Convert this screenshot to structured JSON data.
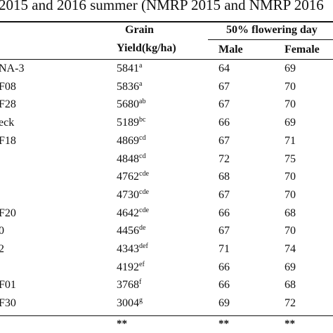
{
  "caption": "2015 and 2016 summer (NMRP 2015 and NMRP 2016",
  "headers": {
    "grain_line1": "Grain",
    "grain_line2": "Yield(kg/ha)",
    "flowering": "50% flowering day",
    "male": "Male",
    "female": "Female"
  },
  "rows": [
    {
      "name": "NA-3",
      "yield": "5841",
      "sup": "a",
      "male": "64",
      "female": "69"
    },
    {
      "name": "F08",
      "yield": "5836",
      "sup": "a",
      "male": "67",
      "female": "70"
    },
    {
      "name": "F28",
      "yield": "5680",
      "sup": "ab",
      "male": "67",
      "female": "70"
    },
    {
      "name": "eck",
      "yield": "5189",
      "sup": "bc",
      "male": "66",
      "female": "69"
    },
    {
      "name": "F18",
      "yield": "4869",
      "sup": "cd",
      "male": "67",
      "female": "71"
    },
    {
      "name": "",
      "yield": "4848",
      "sup": "cd",
      "male": "72",
      "female": "75"
    },
    {
      "name": "",
      "yield": "4762",
      "sup": "cde",
      "male": "68",
      "female": "70"
    },
    {
      "name": "",
      "yield": "4730",
      "sup": "cde",
      "male": "67",
      "female": "70"
    },
    {
      "name": "F20",
      "yield": "4642",
      "sup": "cde",
      "male": "66",
      "female": "68"
    },
    {
      "name": "0",
      "yield": "4456",
      "sup": "de",
      "male": "67",
      "female": "70"
    },
    {
      "name": "2",
      "yield": "4343",
      "sup": "def",
      "male": "71",
      "female": "74"
    },
    {
      "name": "",
      "yield": "4192",
      "sup": "ef",
      "male": "66",
      "female": "69"
    },
    {
      "name": "F01",
      "yield": "3768",
      "sup": "f",
      "male": "66",
      "female": "68"
    },
    {
      "name": "F30",
      "yield": "3004",
      "sup": "g",
      "male": "69",
      "female": "72"
    }
  ],
  "significance": {
    "yield": "**",
    "male": "**",
    "female": "**"
  }
}
